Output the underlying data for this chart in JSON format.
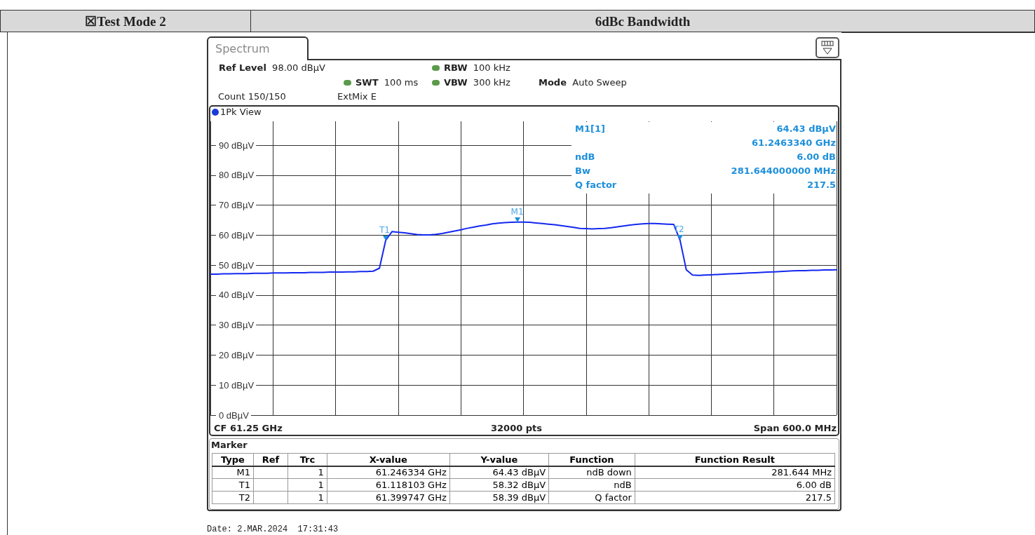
{
  "chart_data": {
    "type": "line",
    "title": "6dBc Bandwidth",
    "categories": [
      null,
      null,
      null,
      null,
      null,
      null,
      null,
      null,
      null,
      null,
      null,
      null,
      null,
      null,
      null,
      null,
      null,
      null,
      null,
      null,
      null,
      null,
      null,
      null,
      null,
      null,
      null,
      null,
      null,
      null,
      null,
      null,
      null,
      null,
      null,
      null,
      null,
      null,
      null,
      null,
      null,
      null,
      null,
      null,
      null,
      null,
      null,
      null,
      null,
      null,
      null,
      null,
      null,
      null,
      null,
      null,
      null,
      null,
      null,
      null,
      null,
      null,
      null,
      null,
      null,
      null,
      null,
      null,
      null,
      null,
      null,
      null,
      null,
      null,
      null,
      null,
      null,
      null,
      null,
      null,
      null,
      null,
      null,
      null,
      null,
      null,
      null,
      null,
      null,
      null,
      null,
      null,
      null,
      null,
      null,
      null,
      null,
      null,
      null,
      null,
      null
    ],
    "series": [
      {
        "color": "#1428f0",
        "values": [
          47.0,
          47.0,
          47.1,
          47.1,
          47.2,
          47.2,
          47.2,
          47.3,
          47.3,
          47.3,
          47.4,
          47.4,
          47.4,
          47.5,
          47.5,
          47.5,
          47.6,
          47.6,
          47.6,
          47.7,
          47.7,
          47.7,
          47.8,
          47.8,
          47.9,
          47.9,
          48.0,
          49,
          58.3,
          61.2,
          61,
          60.8,
          60.5,
          60.2,
          60.1,
          60.1,
          60.3,
          60.6,
          61,
          61.4,
          61.8,
          62.3,
          62.7,
          63.1,
          63.4,
          63.8,
          64,
          64.2,
          64.3,
          64.4,
          64.4,
          64.3,
          64.1,
          63.9,
          63.7,
          63.5,
          63.2,
          62.9,
          62.6,
          62.3,
          62.2,
          62.1,
          62.2,
          62.3,
          62.5,
          62.8,
          63.1,
          63.4,
          63.6,
          63.8,
          63.9,
          63.9,
          63.8,
          63.7,
          63.6,
          58.4,
          48.5,
          46.7,
          46.6,
          46.7,
          46.8,
          46.9,
          47,
          47.1,
          47.2,
          47.3,
          47.4,
          47.5,
          47.6,
          47.7,
          47.8,
          47.9,
          48,
          48.1,
          48.2,
          48.2,
          48.3,
          48.3,
          48.4,
          48.4,
          48.5
        ]
      }
    ],
    "ylim": [
      0,
      98
    ],
    "yticks": [
      {
        "value": 0,
        "label": "0 dBµV"
      },
      {
        "value": 10,
        "label": "10 dBµV"
      },
      {
        "value": 20,
        "label": "20 dBµV"
      },
      {
        "value": 30,
        "label": "30 dBµV"
      },
      {
        "value": 40,
        "label": "40 dBµV"
      },
      {
        "value": 50,
        "label": "50 dBµV"
      },
      {
        "value": 60,
        "label": "60 dBµV"
      },
      {
        "value": 70,
        "label": "70 dBµV"
      },
      {
        "value": 80,
        "label": "80 dBµV"
      },
      {
        "value": 90,
        "label": "90 dBµV"
      }
    ],
    "tick_labels": "y",
    "grid": true,
    "line_style": "solid",
    "annotations": [
      "☒Test Mode 2",
      "Spectrum",
      "Ref Level\t98.00 dBµV",
      "RBW\t100 kHz",
      "SWT\t100 ms",
      "VBW\t300 kHz",
      "Mode\tAuto Sweep",
      "Count 150/150",
      "ExtMix E",
      "1Pk View",
      "M1[1]\t64.43 dBµV",
      "\t61.2463340 GHz",
      "ndB\t6.00 dB",
      "Bw\t281.644000000 MHz",
      "Q factor\t217.5",
      "CF 61.25 GHz",
      "32000 pts",
      "Span 600.0 MHz",
      "Marker",
      "Type\tRef\tTrc\tX-value\tY-value\tFunction\tFunction Result",
      "M1\t\t1\t61.246334 GHz\t64.43 dBµV\tndB down\t281.644 MHz",
      "T1\t\t1\t61.118103 GHz\t58.32 dBµV\tndB\t6.00 dB",
      "T2\t\t1\t61.399747 GHz\t58.39 dBµV\tQ factor\t217.5",
      "Date: 2.MAR.2024  17:31:43",
      {
        "text": "M1",
        "y": 64.43
      },
      {
        "text": "T1",
        "y": 58.32
      },
      {
        "text": "T2",
        "y": 58.39
      }
    ]
  }
}
